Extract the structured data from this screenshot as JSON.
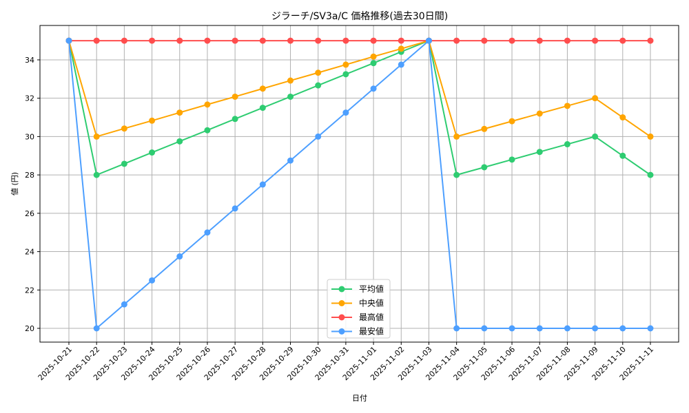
{
  "chart_data": {
    "type": "line",
    "title": "ジラーチ/SV3a/C 価格推移(過去30日間)",
    "xlabel": "日付",
    "ylabel": "値 (円)",
    "ylim": [
      19.25,
      35.75
    ],
    "yticks": [
      20,
      22,
      24,
      26,
      28,
      30,
      32,
      34
    ],
    "grid": true,
    "legend_position": "lower center",
    "categories": [
      "2025-10-21",
      "2025-10-22",
      "2025-10-23",
      "2025-10-24",
      "2025-10-25",
      "2025-10-26",
      "2025-10-27",
      "2025-10-28",
      "2025-10-29",
      "2025-10-30",
      "2025-10-31",
      "2025-11-01",
      "2025-11-02",
      "2025-11-03",
      "2025-11-04",
      "2025-11-05",
      "2025-11-06",
      "2025-11-07",
      "2025-11-08",
      "2025-11-09",
      "2025-11-10",
      "2025-11-11"
    ],
    "series": [
      {
        "name": "平均値",
        "color": "#2ecc71",
        "values": [
          35,
          28,
          28.58,
          29.17,
          29.75,
          30.33,
          30.92,
          31.5,
          32.08,
          32.67,
          33.25,
          33.83,
          34.42,
          35,
          28,
          28.4,
          28.8,
          29.2,
          29.6,
          30,
          29,
          28
        ]
      },
      {
        "name": "中央値",
        "color": "#ffa500",
        "values": [
          35,
          30,
          30.42,
          30.83,
          31.25,
          31.67,
          32.08,
          32.5,
          32.92,
          33.33,
          33.75,
          34.17,
          34.58,
          35,
          30,
          30.4,
          30.8,
          31.2,
          31.6,
          32,
          31,
          30
        ]
      },
      {
        "name": "最高値",
        "color": "#ff4d4d",
        "values": [
          35,
          35,
          35,
          35,
          35,
          35,
          35,
          35,
          35,
          35,
          35,
          35,
          35,
          35,
          35,
          35,
          35,
          35,
          35,
          35,
          35,
          35
        ]
      },
      {
        "name": "最安値",
        "color": "#4d9fff",
        "values": [
          35,
          20,
          21.25,
          22.5,
          23.75,
          25,
          26.25,
          27.5,
          28.75,
          30,
          31.25,
          32.5,
          33.75,
          35,
          20,
          20,
          20,
          20,
          20,
          20,
          20,
          20
        ]
      }
    ]
  }
}
